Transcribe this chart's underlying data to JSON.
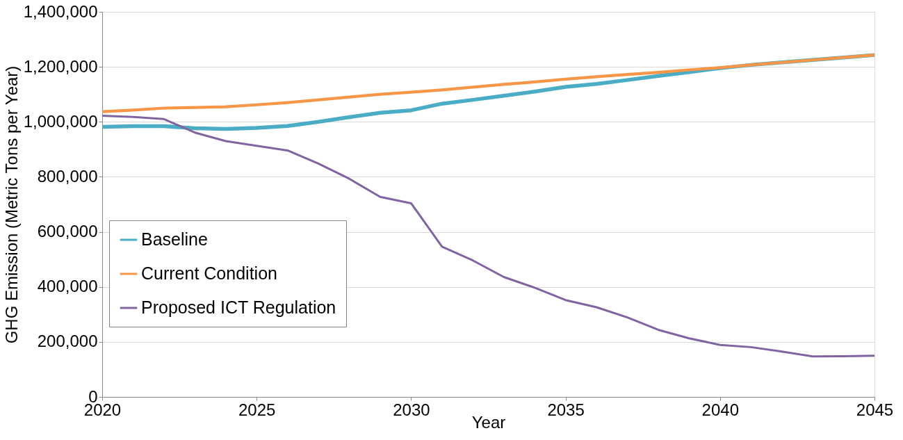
{
  "chart_data": {
    "type": "line",
    "xlabel": "Year",
    "ylabel": "GHG Emission (Metric Tons per Year)",
    "x": [
      2020,
      2021,
      2022,
      2023,
      2024,
      2025,
      2026,
      2027,
      2028,
      2029,
      2030,
      2031,
      2032,
      2033,
      2034,
      2035,
      2036,
      2037,
      2038,
      2039,
      2040,
      2041,
      2042,
      2043,
      2044,
      2045
    ],
    "xlim": [
      2020,
      2045
    ],
    "xticks": [
      2020,
      2025,
      2030,
      2035,
      2040,
      2045
    ],
    "ylim": [
      0,
      1400000
    ],
    "yticks": [
      {
        "value": 0,
        "label": "0"
      },
      {
        "value": 200000,
        "label": "200,000"
      },
      {
        "value": 400000,
        "label": "400,000"
      },
      {
        "value": 600000,
        "label": "600,000"
      },
      {
        "value": 800000,
        "label": "800,000"
      },
      {
        "value": 1000000,
        "label": "1,000,000"
      },
      {
        "value": 1200000,
        "label": "1,200,000"
      },
      {
        "value": 1400000,
        "label": "1,400,000"
      }
    ],
    "grid": "y",
    "legend": "bottom left",
    "marker": "none",
    "line_style": "solid",
    "series": [
      {
        "name": "Baseline",
        "color": "#4bacc6",
        "values": [
          982000,
          984000,
          984000,
          977000,
          974000,
          978000,
          985000,
          1000000,
          1017000,
          1033000,
          1042000,
          1066000,
          1080000,
          1095000,
          1110000,
          1127000,
          1138000,
          1152000,
          1167000,
          1181000,
          1195000,
          1207000,
          1216000,
          1225000,
          1234000,
          1243000
        ]
      },
      {
        "name": "Current Condition",
        "color": "#f79646",
        "values": [
          1037000,
          1043000,
          1050000,
          1052000,
          1055000,
          1062000,
          1070000,
          1080000,
          1090000,
          1100000,
          1108000,
          1116000,
          1126000,
          1136000,
          1145000,
          1155000,
          1164000,
          1172000,
          1180000,
          1189000,
          1197000,
          1207000,
          1216000,
          1225000,
          1234000,
          1243000
        ]
      },
      {
        "name": "Proposed ICT Regulation",
        "color": "#8064a2",
        "values": [
          1022000,
          1018000,
          1010000,
          961000,
          930000,
          913000,
          896000,
          848000,
          793000,
          727000,
          704000,
          546000,
          496000,
          436000,
          397000,
          352000,
          326000,
          289000,
          244000,
          213000,
          189000,
          181000,
          165000,
          147000,
          148000,
          150000
        ]
      }
    ]
  }
}
